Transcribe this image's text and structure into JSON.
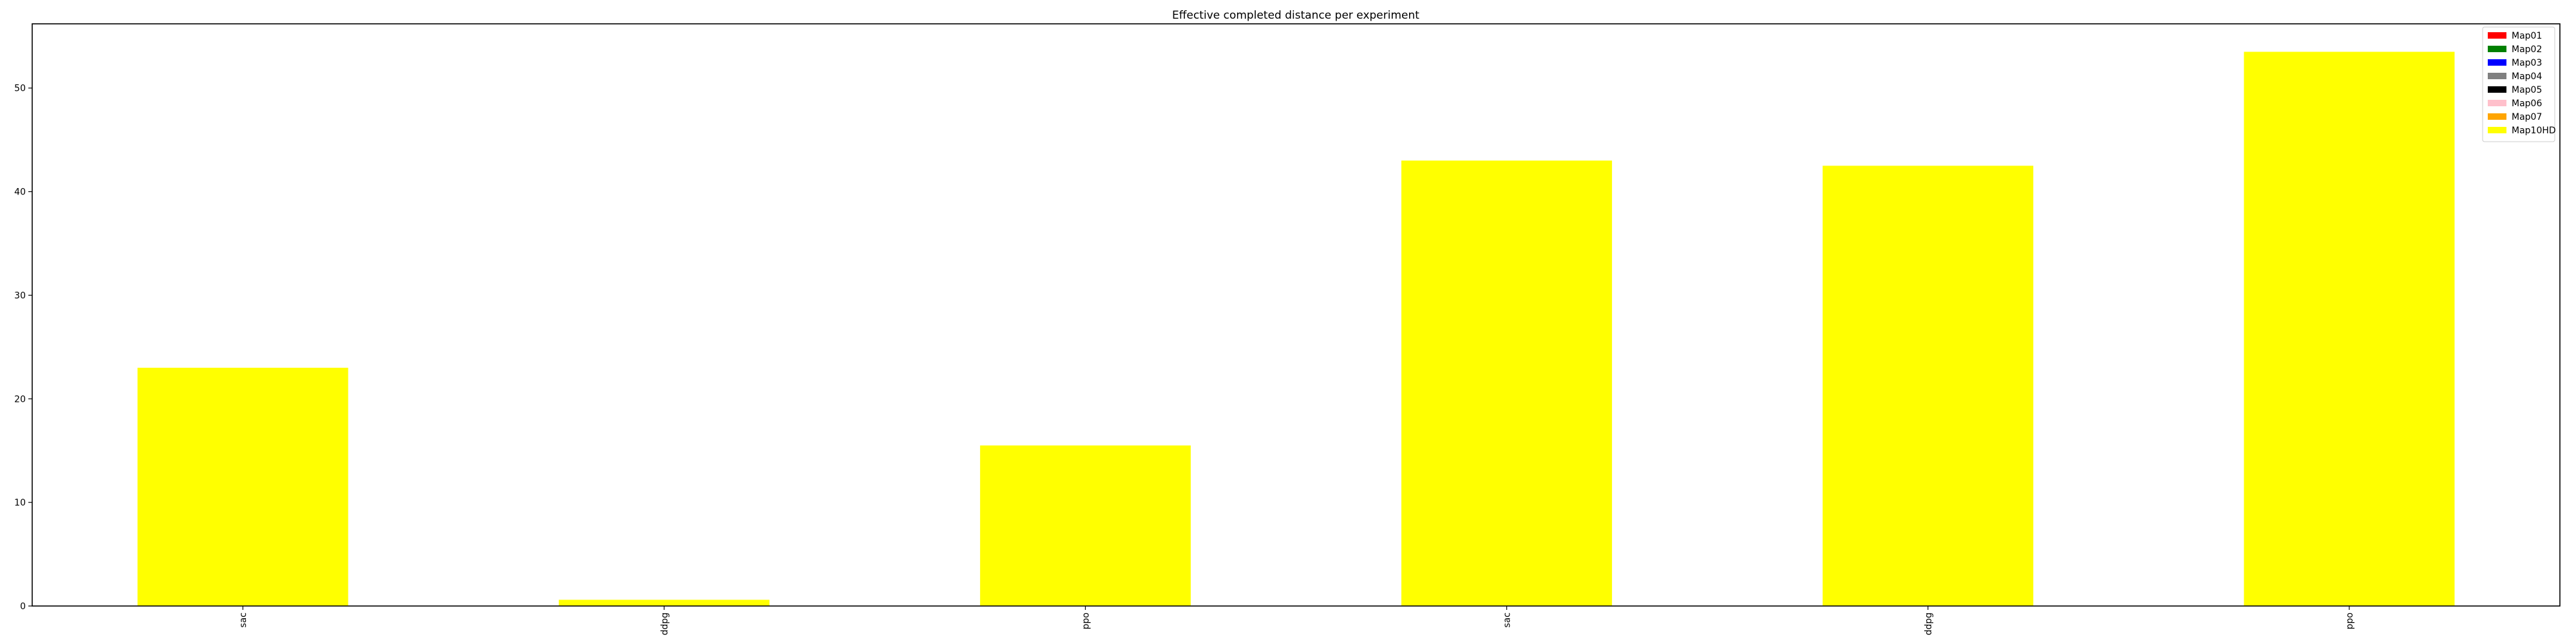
{
  "chart_data": {
    "type": "bar",
    "stacked": true,
    "title": "Effective completed distance per experiment",
    "xlabel": "",
    "ylabel": "",
    "categories": [
      "sac",
      "ddpg",
      "ppo",
      "sac",
      "ddpg",
      "ppo"
    ],
    "ylim": [
      0,
      56.2
    ],
    "yticks": [
      0,
      10,
      20,
      30,
      40,
      50
    ],
    "grid": false,
    "legend_position": "top-right",
    "series": [
      {
        "name": "Map01",
        "color": "#ff0000",
        "values": [
          0,
          0,
          0,
          0,
          0,
          0
        ]
      },
      {
        "name": "Map02",
        "color": "#008000",
        "values": [
          0,
          0,
          0,
          0,
          0,
          0
        ]
      },
      {
        "name": "Map03",
        "color": "#0000ff",
        "values": [
          0,
          0,
          0,
          0,
          0,
          0
        ]
      },
      {
        "name": "Map04",
        "color": "#808080",
        "values": [
          0,
          0,
          0,
          0,
          0,
          0
        ]
      },
      {
        "name": "Map05",
        "color": "#000000",
        "values": [
          0,
          0,
          0,
          0,
          0,
          0
        ]
      },
      {
        "name": "Map06",
        "color": "#ffc0cb",
        "values": [
          0,
          0,
          0,
          0,
          0,
          0
        ]
      },
      {
        "name": "Map07",
        "color": "#ffa500",
        "values": [
          0,
          0,
          0,
          0,
          0,
          0
        ]
      },
      {
        "name": "Map10HD",
        "color": "#ffff00",
        "values": [
          23.0,
          0.6,
          15.5,
          43.0,
          42.5,
          53.5
        ]
      }
    ]
  }
}
